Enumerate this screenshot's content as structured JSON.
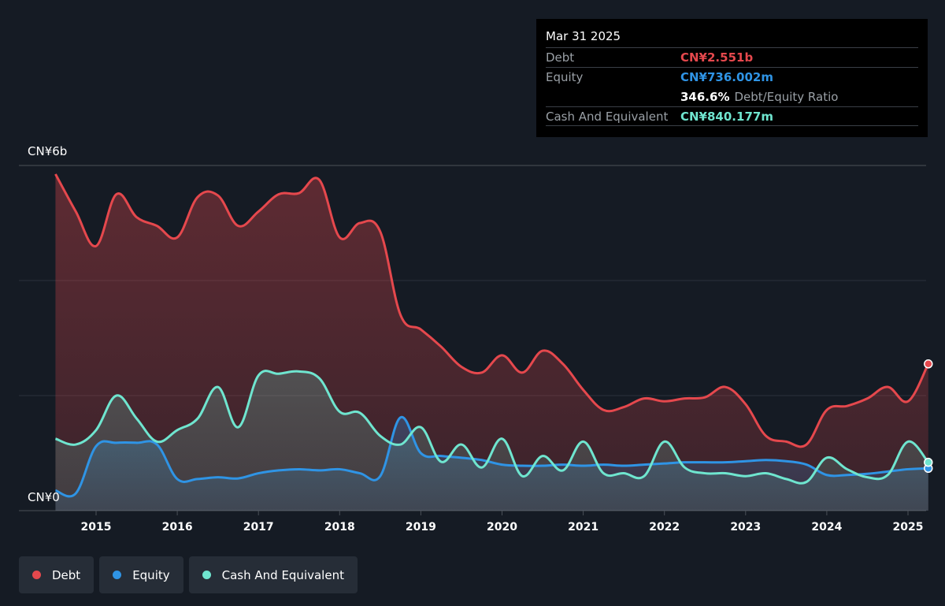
{
  "tooltip": {
    "date": "Mar 31 2025",
    "debt_label": "Debt",
    "debt_value": "CN¥2.551b",
    "equity_label": "Equity",
    "equity_value": "CN¥736.002m",
    "ratio_value": "346.6%",
    "ratio_label": "Debt/Equity Ratio",
    "cash_label": "Cash And Equivalent",
    "cash_value": "CN¥840.177m"
  },
  "legend": {
    "items": [
      {
        "label": "Debt",
        "color": "#e5484d"
      },
      {
        "label": "Equity",
        "color": "#2f94e5"
      },
      {
        "label": "Cash And Equivalent",
        "color": "#6fe5cf"
      }
    ]
  },
  "chart_data": {
    "type": "area",
    "ylim": [
      0,
      6
    ],
    "y_unit": "CN¥ billions",
    "y_tick_labels": [
      {
        "value": 6,
        "label": "CN¥6b"
      },
      {
        "value": 0,
        "label": "CN¥0"
      }
    ],
    "x_range": [
      2013.5,
      2025.25
    ],
    "x_ticks": [
      "2015",
      "2016",
      "2017",
      "2018",
      "2019",
      "2020",
      "2021",
      "2022",
      "2023",
      "2024",
      "2025"
    ],
    "grid": true,
    "series": [
      {
        "name": "Debt",
        "color": "#e5484d",
        "points": [
          [
            2014.5,
            5.85
          ],
          [
            2014.75,
            5.2
          ],
          [
            2015.0,
            4.6
          ],
          [
            2015.25,
            5.5
          ],
          [
            2015.5,
            5.1
          ],
          [
            2015.75,
            4.95
          ],
          [
            2016.0,
            4.75
          ],
          [
            2016.25,
            5.45
          ],
          [
            2016.5,
            5.48
          ],
          [
            2016.75,
            4.95
          ],
          [
            2017.0,
            5.2
          ],
          [
            2017.25,
            5.5
          ],
          [
            2017.5,
            5.52
          ],
          [
            2017.75,
            5.75
          ],
          [
            2018.0,
            4.75
          ],
          [
            2018.25,
            5.0
          ],
          [
            2018.5,
            4.85
          ],
          [
            2018.75,
            3.4
          ],
          [
            2019.0,
            3.15
          ],
          [
            2019.25,
            2.85
          ],
          [
            2019.5,
            2.5
          ],
          [
            2019.75,
            2.4
          ],
          [
            2020.0,
            2.7
          ],
          [
            2020.25,
            2.4
          ],
          [
            2020.5,
            2.78
          ],
          [
            2020.75,
            2.55
          ],
          [
            2021.0,
            2.1
          ],
          [
            2021.25,
            1.75
          ],
          [
            2021.5,
            1.8
          ],
          [
            2021.75,
            1.95
          ],
          [
            2022.0,
            1.9
          ],
          [
            2022.25,
            1.95
          ],
          [
            2022.5,
            1.97
          ],
          [
            2022.75,
            2.15
          ],
          [
            2023.0,
            1.85
          ],
          [
            2023.25,
            1.3
          ],
          [
            2023.5,
            1.2
          ],
          [
            2023.75,
            1.15
          ],
          [
            2024.0,
            1.75
          ],
          [
            2024.25,
            1.82
          ],
          [
            2024.5,
            1.95
          ],
          [
            2024.75,
            2.15
          ],
          [
            2025.0,
            1.9
          ],
          [
            2025.25,
            2.551
          ]
        ]
      },
      {
        "name": "Equity",
        "color": "#2f94e5",
        "points": [
          [
            2014.5,
            0.35
          ],
          [
            2014.75,
            0.3
          ],
          [
            2015.0,
            1.12
          ],
          [
            2015.25,
            1.18
          ],
          [
            2015.5,
            1.18
          ],
          [
            2015.75,
            1.15
          ],
          [
            2016.0,
            0.55
          ],
          [
            2016.25,
            0.55
          ],
          [
            2016.5,
            0.58
          ],
          [
            2016.75,
            0.56
          ],
          [
            2017.0,
            0.65
          ],
          [
            2017.25,
            0.7
          ],
          [
            2017.5,
            0.72
          ],
          [
            2017.75,
            0.7
          ],
          [
            2018.0,
            0.72
          ],
          [
            2018.25,
            0.65
          ],
          [
            2018.5,
            0.6
          ],
          [
            2018.75,
            1.62
          ],
          [
            2019.0,
            1.0
          ],
          [
            2019.25,
            0.95
          ],
          [
            2019.5,
            0.92
          ],
          [
            2019.75,
            0.88
          ],
          [
            2020.0,
            0.8
          ],
          [
            2020.25,
            0.78
          ],
          [
            2020.5,
            0.78
          ],
          [
            2020.75,
            0.8
          ],
          [
            2021.0,
            0.78
          ],
          [
            2021.25,
            0.8
          ],
          [
            2021.5,
            0.78
          ],
          [
            2021.75,
            0.8
          ],
          [
            2022.0,
            0.82
          ],
          [
            2022.25,
            0.84
          ],
          [
            2022.5,
            0.84
          ],
          [
            2022.75,
            0.84
          ],
          [
            2023.0,
            0.86
          ],
          [
            2023.25,
            0.88
          ],
          [
            2023.5,
            0.86
          ],
          [
            2023.75,
            0.8
          ],
          [
            2024.0,
            0.62
          ],
          [
            2024.25,
            0.62
          ],
          [
            2024.5,
            0.64
          ],
          [
            2024.75,
            0.68
          ],
          [
            2025.0,
            0.72
          ],
          [
            2025.25,
            0.736
          ]
        ]
      },
      {
        "name": "Cash And Equivalent",
        "color": "#6fe5cf",
        "points": [
          [
            2014.5,
            1.25
          ],
          [
            2014.75,
            1.15
          ],
          [
            2015.0,
            1.4
          ],
          [
            2015.25,
            2.0
          ],
          [
            2015.5,
            1.6
          ],
          [
            2015.75,
            1.2
          ],
          [
            2016.0,
            1.4
          ],
          [
            2016.25,
            1.6
          ],
          [
            2016.5,
            2.15
          ],
          [
            2016.75,
            1.45
          ],
          [
            2017.0,
            2.35
          ],
          [
            2017.25,
            2.38
          ],
          [
            2017.5,
            2.42
          ],
          [
            2017.75,
            2.3
          ],
          [
            2018.0,
            1.72
          ],
          [
            2018.25,
            1.7
          ],
          [
            2018.5,
            1.3
          ],
          [
            2018.75,
            1.15
          ],
          [
            2019.0,
            1.45
          ],
          [
            2019.25,
            0.85
          ],
          [
            2019.5,
            1.15
          ],
          [
            2019.75,
            0.75
          ],
          [
            2020.0,
            1.25
          ],
          [
            2020.25,
            0.6
          ],
          [
            2020.5,
            0.95
          ],
          [
            2020.75,
            0.7
          ],
          [
            2021.0,
            1.2
          ],
          [
            2021.25,
            0.65
          ],
          [
            2021.5,
            0.65
          ],
          [
            2021.75,
            0.6
          ],
          [
            2022.0,
            1.2
          ],
          [
            2022.25,
            0.75
          ],
          [
            2022.5,
            0.65
          ],
          [
            2022.75,
            0.65
          ],
          [
            2023.0,
            0.6
          ],
          [
            2023.25,
            0.65
          ],
          [
            2023.5,
            0.55
          ],
          [
            2023.75,
            0.5
          ],
          [
            2024.0,
            0.92
          ],
          [
            2024.25,
            0.72
          ],
          [
            2024.5,
            0.58
          ],
          [
            2024.75,
            0.62
          ],
          [
            2025.0,
            1.2
          ],
          [
            2025.25,
            0.84
          ]
        ]
      }
    ]
  }
}
